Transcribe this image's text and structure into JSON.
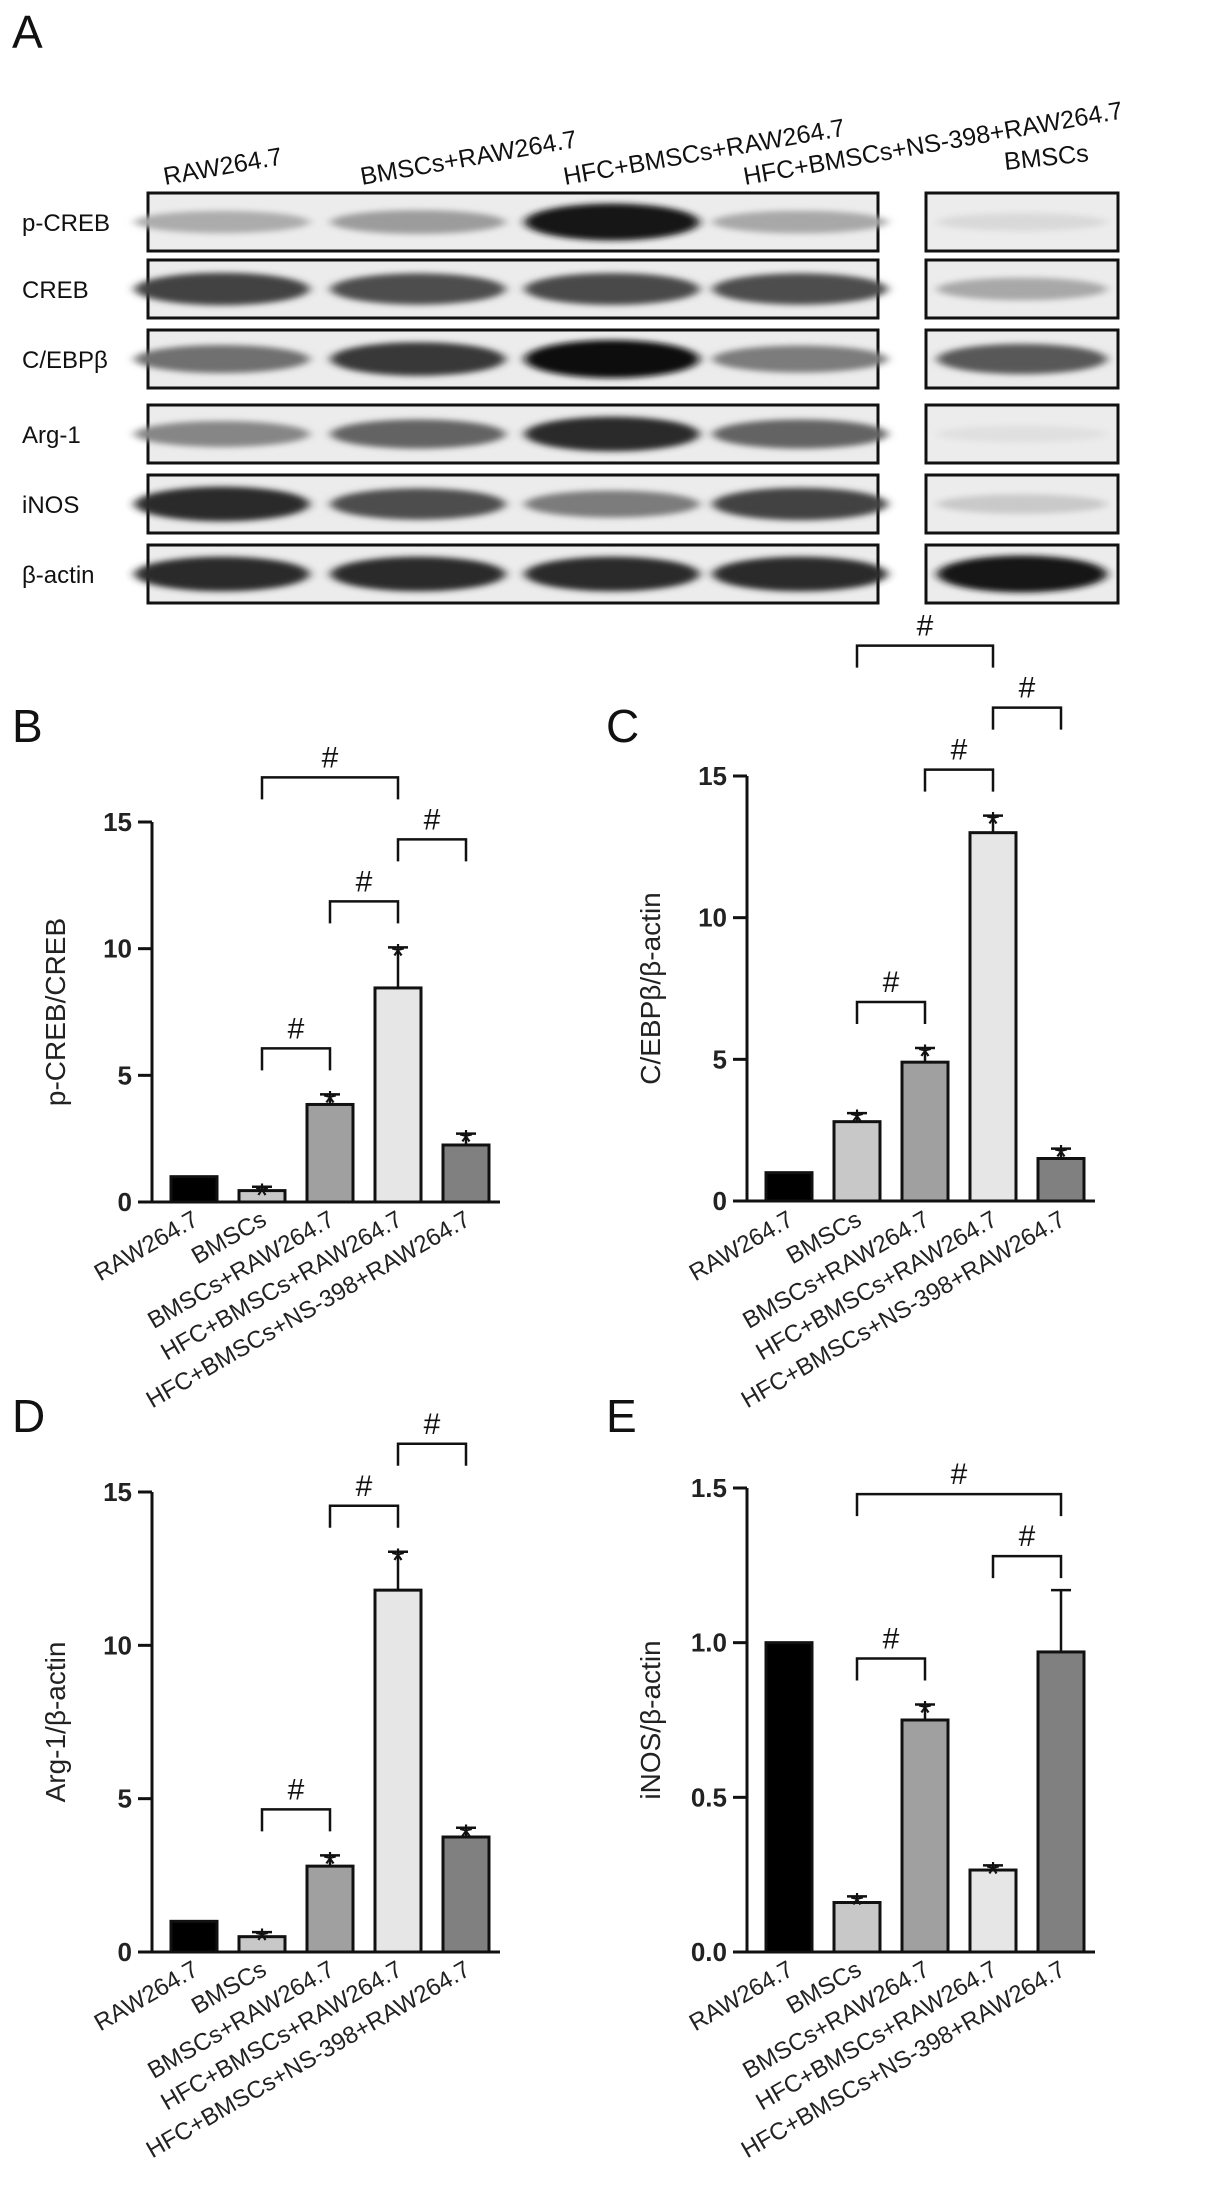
{
  "panel_letters": [
    "A",
    "B",
    "C",
    "D",
    "E"
  ],
  "blot": {
    "lane_labels": [
      "RAW264.7",
      "BMSCs+RAW264.7",
      "HFC+BMSCs+RAW264.7",
      "HFC+BMSCs+NS-398+RAW264.7",
      "BMSCs"
    ],
    "rows": [
      {
        "label": "p-CREB",
        "intensities": [
          0.28,
          0.35,
          0.95,
          0.3,
          0.08
        ]
      },
      {
        "label": "CREB",
        "intensities": [
          0.75,
          0.7,
          0.72,
          0.7,
          0.3
        ]
      },
      {
        "label": "C/EBPβ",
        "intensities": [
          0.55,
          0.8,
          1.0,
          0.5,
          0.65
        ]
      },
      {
        "label": "Arg-1",
        "intensities": [
          0.45,
          0.6,
          0.85,
          0.6,
          0.05
        ]
      },
      {
        "label": "iNOS",
        "intensities": [
          0.85,
          0.7,
          0.5,
          0.75,
          0.15
        ]
      },
      {
        "label": "β-actin",
        "intensities": [
          0.85,
          0.85,
          0.85,
          0.85,
          0.95
        ]
      }
    ]
  },
  "bar_colors": [
    "#000000",
    "#c8c8c8",
    "#a0a0a0",
    "#e6e6e6",
    "#808080"
  ],
  "chart_data": [
    {
      "panel": "B",
      "type": "bar",
      "categories": [
        "RAW264.7",
        "BMSCs",
        "BMSCs+RAW264.7",
        "HFC+BMSCs+RAW264.7",
        "HFC+BMSCs+NS-398+RAW264.7"
      ],
      "values": [
        1.0,
        0.45,
        3.85,
        8.45,
        2.25
      ],
      "errors": [
        0,
        0.15,
        0.4,
        1.6,
        0.45
      ],
      "stars": [
        false,
        true,
        true,
        true,
        true
      ],
      "ylabel": "p-CREB/CREB",
      "ylim": [
        0,
        15
      ],
      "yticks": [
        0,
        5,
        10,
        15
      ],
      "ytick_labels": [
        "0",
        "5",
        "10",
        "15"
      ],
      "brackets": [
        {
          "from": 1,
          "to": 2,
          "label": "#"
        },
        {
          "from": 2,
          "to": 3,
          "label": "#"
        },
        {
          "from": 1,
          "to": 3,
          "label": "#",
          "side": "left"
        },
        {
          "from": 3,
          "to": 4,
          "label": "#",
          "side": "right"
        }
      ]
    },
    {
      "panel": "C",
      "type": "bar",
      "categories": [
        "RAW264.7",
        "BMSCs",
        "BMSCs+RAW264.7",
        "HFC+BMSCs+RAW264.7",
        "HFC+BMSCs+NS-398+RAW264.7"
      ],
      "values": [
        1.0,
        2.8,
        4.9,
        13.0,
        1.5
      ],
      "errors": [
        0,
        0.3,
        0.5,
        0.6,
        0.35
      ],
      "stars": [
        false,
        true,
        true,
        true,
        true
      ],
      "ylabel": "C/EBPβ/β-actin",
      "ylim": [
        0,
        15
      ],
      "yticks": [
        0,
        5,
        10,
        15
      ],
      "ytick_labels": [
        "0",
        "5",
        "10",
        "15"
      ],
      "brackets": [
        {
          "from": 1,
          "to": 2,
          "label": "#"
        },
        {
          "from": 2,
          "to": 3,
          "label": "#"
        },
        {
          "from": 1,
          "to": 3,
          "label": "#",
          "side": "left"
        },
        {
          "from": 3,
          "to": 4,
          "label": "#",
          "side": "right"
        }
      ]
    },
    {
      "panel": "D",
      "type": "bar",
      "categories": [
        "RAW264.7",
        "BMSCs",
        "BMSCs+RAW264.7",
        "HFC+BMSCs+RAW264.7",
        "HFC+BMSCs+NS-398+RAW264.7"
      ],
      "values": [
        1.0,
        0.5,
        2.8,
        11.8,
        3.75
      ],
      "errors": [
        0,
        0.15,
        0.35,
        1.25,
        0.3
      ],
      "stars": [
        false,
        true,
        true,
        true,
        true
      ],
      "ylabel": "Arg-1/β-actin",
      "ylim": [
        0,
        15
      ],
      "yticks": [
        0,
        5,
        10,
        15
      ],
      "ytick_labels": [
        "0",
        "5",
        "10",
        "15"
      ],
      "brackets": [
        {
          "from": 1,
          "to": 2,
          "label": "#"
        },
        {
          "from": 2,
          "to": 3,
          "label": "#",
          "side": "left"
        },
        {
          "from": 3,
          "to": 4,
          "label": "#",
          "side": "right"
        }
      ]
    },
    {
      "panel": "E",
      "type": "bar",
      "categories": [
        "RAW264.7",
        "BMSCs",
        "BMSCs+RAW264.7",
        "HFC+BMSCs+RAW264.7",
        "HFC+BMSCs+NS-398+RAW264.7"
      ],
      "values": [
        1.0,
        0.16,
        0.75,
        0.265,
        0.97
      ],
      "errors": [
        0,
        0.02,
        0.05,
        0.015,
        0.2
      ],
      "stars": [
        false,
        true,
        true,
        true,
        false
      ],
      "ylabel": "iNOS/β-actin",
      "ylim": [
        0,
        1.5
      ],
      "yticks": [
        0,
        0.5,
        1.0,
        1.5
      ],
      "ytick_labels": [
        "0.0",
        "0.5",
        "1.0",
        "1.5"
      ],
      "brackets": [
        {
          "from": 1,
          "to": 2,
          "label": "#"
        },
        {
          "from": 3,
          "to": 4,
          "label": "#"
        },
        {
          "from": 1,
          "to": 4,
          "label": "#"
        }
      ]
    }
  ],
  "markers": {
    "star": "*"
  }
}
